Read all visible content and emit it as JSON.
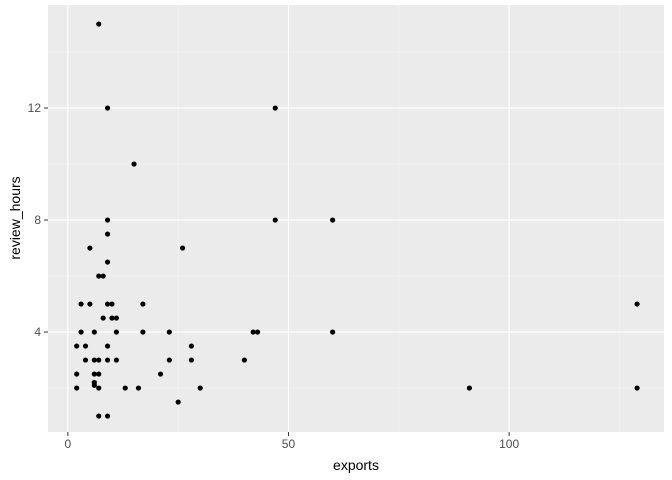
{
  "chart_data": {
    "type": "scatter",
    "x_label": "exports",
    "y_label": "review_hours",
    "x": [
      7,
      9,
      47,
      15,
      9,
      47,
      60,
      9,
      5,
      26,
      9,
      7,
      8,
      3,
      5,
      9,
      10,
      17,
      129,
      8,
      10,
      11,
      3,
      6,
      11,
      17,
      23,
      42,
      43,
      60,
      2,
      4,
      9,
      28,
      4,
      6,
      7,
      9,
      11,
      23,
      28,
      40,
      2,
      6,
      7,
      21,
      6,
      6,
      2,
      7,
      13,
      16,
      30,
      91,
      129,
      25,
      7,
      9
    ],
    "y": [
      15,
      12,
      12,
      10,
      8,
      8,
      8,
      7.5,
      7,
      7,
      6.5,
      6,
      6,
      5,
      5,
      5,
      5,
      5,
      5,
      4.5,
      4.5,
      4.5,
      4,
      4,
      4,
      4,
      4,
      4,
      4,
      4,
      3.5,
      3.5,
      3.5,
      3.5,
      3,
      3,
      3,
      3,
      3,
      3,
      3,
      3,
      2.5,
      2.5,
      2.5,
      2.5,
      2.2,
      2.1,
      2,
      2,
      2,
      2,
      2,
      2,
      2,
      1.5,
      1,
      1
    ],
    "color": "#000000",
    "xlim": [
      -4.5,
      135.1
    ],
    "ylim": [
      0.43,
      15.68
    ],
    "xticks": [
      0,
      50,
      100
    ],
    "yticks": [
      4,
      8,
      12
    ],
    "grid": true
  }
}
